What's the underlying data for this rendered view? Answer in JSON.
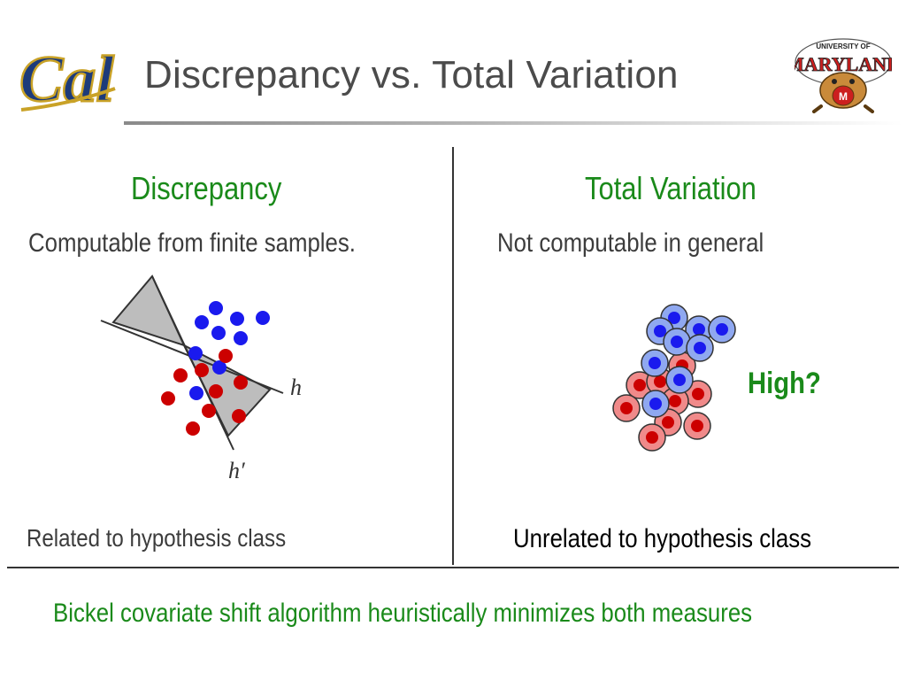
{
  "title": "Discrepancy vs. Total Variation",
  "logos": {
    "left": "Cal",
    "right_text": [
      "UNIVERSITY OF",
      "MARYLAND"
    ]
  },
  "left": {
    "heading": "Discrepancy",
    "subtext": "Computable from finite samples.",
    "note": "Related to hypothesis class",
    "labels": {
      "h": "h",
      "h_prime": "h′"
    }
  },
  "right": {
    "heading": "Total Variation",
    "subtext": "Not computable in general",
    "note": "Unrelated to hypothesis class",
    "high_label": "High?"
  },
  "footer": "Bickel covariate shift algorithm heuristically minimizes both measures",
  "colors": {
    "green": "#1a8a1a",
    "blue": "#1a1aee",
    "red": "#cc0000",
    "blue_ring": "#8fa8f0",
    "red_ring": "#f08a8a",
    "gray_region": "#bdbdbd"
  }
}
